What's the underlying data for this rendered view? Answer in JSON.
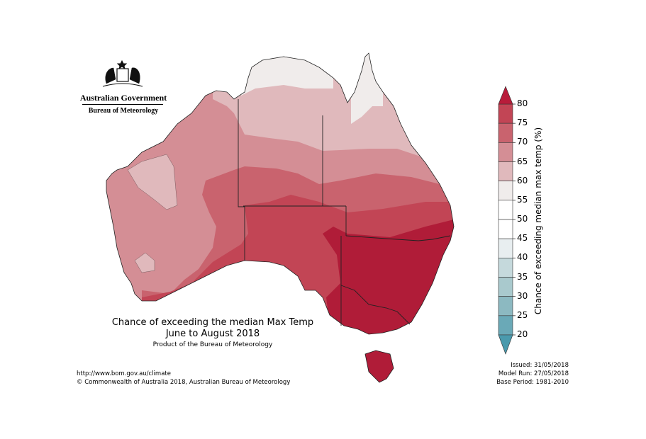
{
  "logo": {
    "line1": "Australian Government",
    "line2": "Bureau of Meteorology"
  },
  "title": {
    "line1": "Chance of exceeding the median Max Temp",
    "line2": "June to August 2018",
    "product": "Product of the Bureau of Meteorology"
  },
  "footer_left": {
    "url": "http://www.bom.gov.au/climate",
    "copyright": "© Commonwealth of Australia 2018, Australian Bureau of Meteorology"
  },
  "footer_right": {
    "issued": "Issued: 31/05/2018",
    "model_run": "Model Run: 27/05/2018",
    "base_period": "Base Period: 1981-2010"
  },
  "colorbar": {
    "label": "Chance of exceeding median max temp (%)",
    "ticks": [
      "80",
      "75",
      "70",
      "65",
      "60",
      "55",
      "50",
      "45",
      "40",
      "35",
      "30",
      "25",
      "20"
    ],
    "colors_top_to_bottom": [
      "#c24555",
      "#c9636e",
      "#d48e95",
      "#e0b9bc",
      "#f0eceb",
      "#ffffff",
      "#ffffff",
      "#e8eef0",
      "#c5d9dc",
      "#a9c9cd",
      "#8cb9c1",
      "#6aa9b7"
    ],
    "over_color": "#b81c3a",
    "under_color": "#4a9aad"
  },
  "map_regions": {
    "above_80": "#b01c38",
    "75_80": "#c24555",
    "70_75": "#c9636e",
    "65_70": "#d48e95",
    "60_65": "#e0b9bc",
    "55_60": "#f0eceb"
  }
}
